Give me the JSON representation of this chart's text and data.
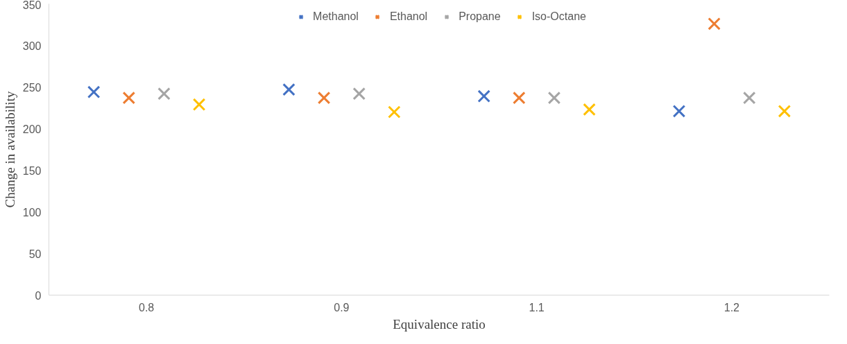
{
  "chart_data": {
    "type": "scatter",
    "xlabel": "Equivalence ratio",
    "ylabel": "Change in availability",
    "categories": [
      "0.8",
      "0.9",
      "1.1",
      "1.2"
    ],
    "series": [
      {
        "name": "Methanol",
        "color": "#4472c4",
        "values": [
          244,
          247,
          239,
          221
        ]
      },
      {
        "name": "Ethanol",
        "color": "#ed7d31",
        "values": [
          237,
          237,
          237,
          326
        ]
      },
      {
        "name": "Propane",
        "color": "#a5a5a5",
        "values": [
          242,
          242,
          237,
          237
        ]
      },
      {
        "name": "Iso-Octane",
        "color": "#ffc000",
        "values": [
          229,
          220,
          223,
          221
        ]
      }
    ],
    "ylim": [
      0,
      350
    ],
    "yticks": [
      0,
      50,
      100,
      150,
      200,
      250,
      300,
      350
    ],
    "grid": false,
    "legend": "top",
    "marker": "cross"
  }
}
